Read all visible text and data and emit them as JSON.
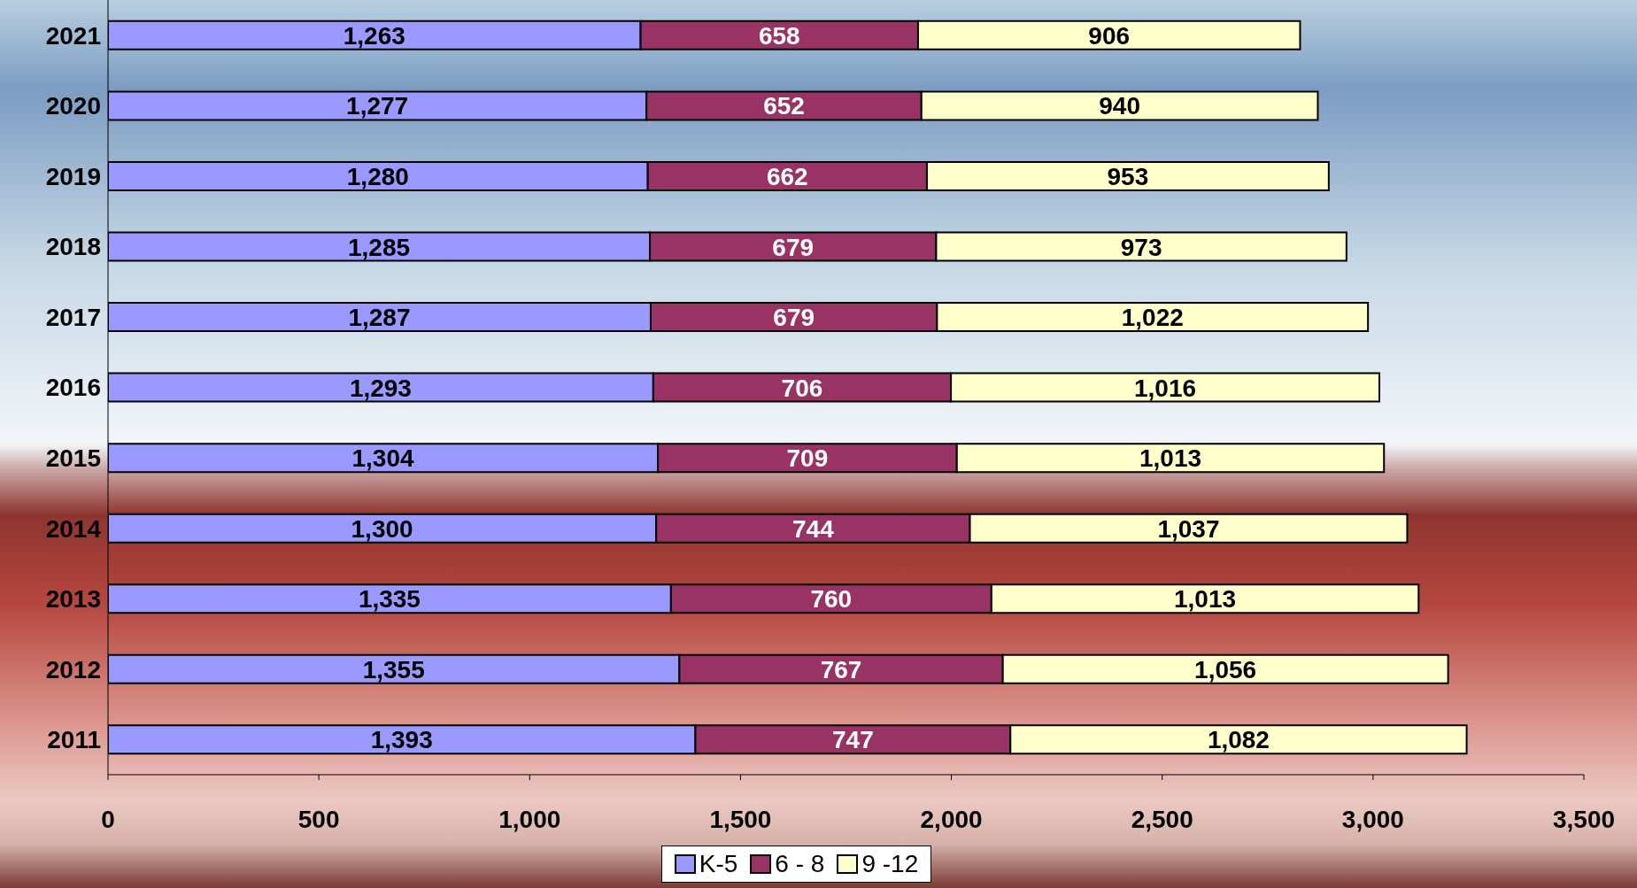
{
  "chart_data": {
    "type": "bar",
    "orientation": "horizontal",
    "stacked": true,
    "categories": [
      "2021",
      "2020",
      "2019",
      "2018",
      "2017",
      "2016",
      "2015",
      "2014",
      "2013",
      "2012",
      "2011"
    ],
    "series": [
      {
        "name": "K-5",
        "color": "#9999ff",
        "values": [
          1263,
          1277,
          1280,
          1285,
          1287,
          1293,
          1304,
          1300,
          1335,
          1355,
          1393
        ],
        "value_labels": [
          "1,263",
          "1,277",
          "1,280",
          "1,285",
          "1,287",
          "1,293",
          "1,304",
          "1,300",
          "1,335",
          "1,355",
          "1,393"
        ]
      },
      {
        "name": "6 - 8",
        "color": "#993366",
        "values": [
          658,
          652,
          662,
          679,
          679,
          706,
          709,
          744,
          760,
          767,
          747
        ],
        "value_labels": [
          "658",
          "652",
          "662",
          "679",
          "679",
          "706",
          "709",
          "744",
          "760",
          "767",
          "747"
        ]
      },
      {
        "name": "9 -12",
        "color": "#ffffcc",
        "values": [
          906,
          940,
          953,
          973,
          1022,
          1016,
          1013,
          1037,
          1013,
          1056,
          1082
        ],
        "value_labels": [
          "906",
          "940",
          "953",
          "973",
          "1,022",
          "1,016",
          "1,013",
          "1,037",
          "1,013",
          "1,056",
          "1,082"
        ]
      }
    ],
    "xlim": [
      0,
      3500
    ],
    "xticks": [
      0,
      500,
      {
        "value": 1000,
        "label": "1,000"
      },
      {
        "value": 1500,
        "label": "1,500"
      },
      {
        "value": 2000,
        "label": "2,000"
      },
      {
        "value": 2500,
        "label": "2,500"
      },
      {
        "value": 3000,
        "label": "3,000"
      },
      {
        "value": 3500,
        "label": "3,500"
      }
    ],
    "grid": false,
    "legend": "bottom"
  }
}
